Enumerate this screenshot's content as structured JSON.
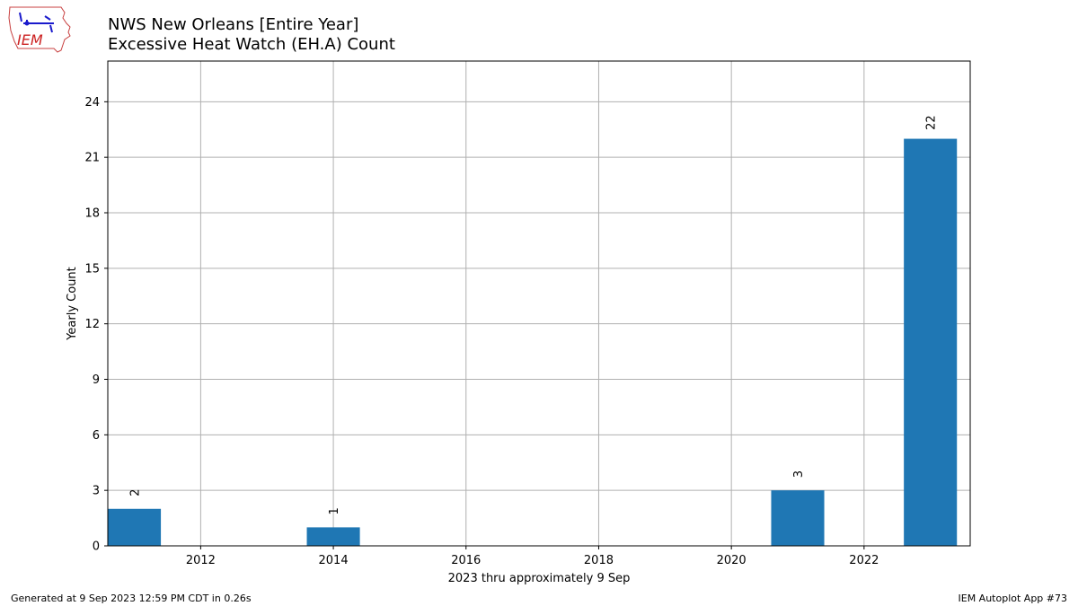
{
  "header": {
    "logo_text": "IEM",
    "title_line1": "NWS New Orleans [Entire Year]",
    "title_line2": "Excessive Heat Watch (EH.A) Count"
  },
  "footer": {
    "generated": "Generated at 9 Sep 2023 12:59 PM CDT in 0.26s",
    "app": "IEM Autoplot App #73"
  },
  "colors": {
    "bar": "#1f77b4",
    "grid": "#b0b0b0"
  },
  "chart_data": {
    "type": "bar",
    "title": "NWS New Orleans [Entire Year] Excessive Heat Watch (EH.A) Count",
    "xlabel": "2023 thru approximately 9 Sep",
    "ylabel": "Yearly Count",
    "x": [
      2011,
      2014,
      2021,
      2023
    ],
    "values": [
      2,
      1,
      3,
      22
    ],
    "data_labels": [
      "2",
      "1",
      "3",
      "22"
    ],
    "xlim": [
      2010.6,
      2023.6
    ],
    "ylim": [
      0,
      26.2
    ],
    "xticks": [
      2012,
      2014,
      2016,
      2018,
      2020,
      2022
    ],
    "yticks": [
      0,
      3,
      6,
      9,
      12,
      15,
      18,
      21,
      24
    ],
    "bar_width_years": 0.8,
    "grid": true
  }
}
